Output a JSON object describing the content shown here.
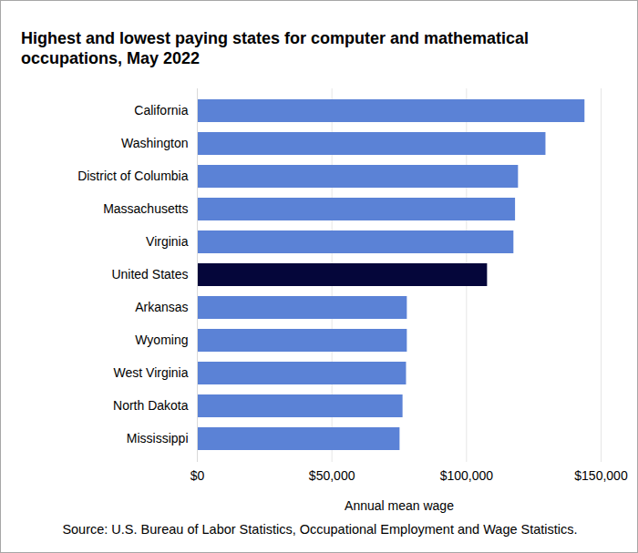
{
  "chart_data": {
    "type": "bar",
    "orientation": "horizontal",
    "title": "Highest and lowest paying states for computer and mathematical occupations, May 2022",
    "x_label": "Annual mean wage",
    "source": "Source: U.S. Bureau of Labor Statistics, Occupational Employment and Wage Statistics.",
    "categories": [
      "California",
      "Washington",
      "District of Columbia",
      "Massachusetts",
      "Virginia",
      "United States",
      "Arkansas",
      "Wyoming",
      "West Virginia",
      "North Dakota",
      "Mississippi"
    ],
    "values": [
      144000,
      129500,
      119300,
      118200,
      117600,
      107800,
      78000,
      78000,
      77700,
      76400,
      75300
    ],
    "colors": [
      "#5b82d6",
      "#5b82d6",
      "#5b82d6",
      "#5b82d6",
      "#5b82d6",
      "#05063a",
      "#5b82d6",
      "#5b82d6",
      "#5b82d6",
      "#5b82d6",
      "#5b82d6"
    ],
    "xlim": [
      0,
      150000
    ],
    "xticks": [
      {
        "value": 0,
        "label": "$0"
      },
      {
        "value": 50000,
        "label": "$50,000"
      },
      {
        "value": 100000,
        "label": "$100,000"
      },
      {
        "value": 150000,
        "label": "$150,000"
      }
    ],
    "grid": true
  }
}
